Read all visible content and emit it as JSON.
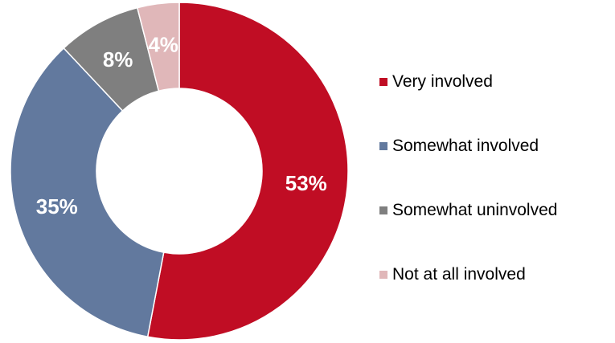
{
  "chart_data": {
    "type": "pie",
    "title": "",
    "legend_position": "right",
    "categories": [
      "Very involved",
      "Somewhat involved",
      "Somewhat uninvolved",
      "Not at all involved"
    ],
    "values": [
      53,
      35,
      8,
      4
    ],
    "value_labels": [
      "53%",
      "35%",
      "8%",
      "4%"
    ],
    "colors": [
      "#c00d24",
      "#62799e",
      "#7f7f7f",
      "#e0b7b9"
    ],
    "label_colors": [
      "#ffffff",
      "#ffffff",
      "#ffffff",
      "#ffffff"
    ]
  }
}
